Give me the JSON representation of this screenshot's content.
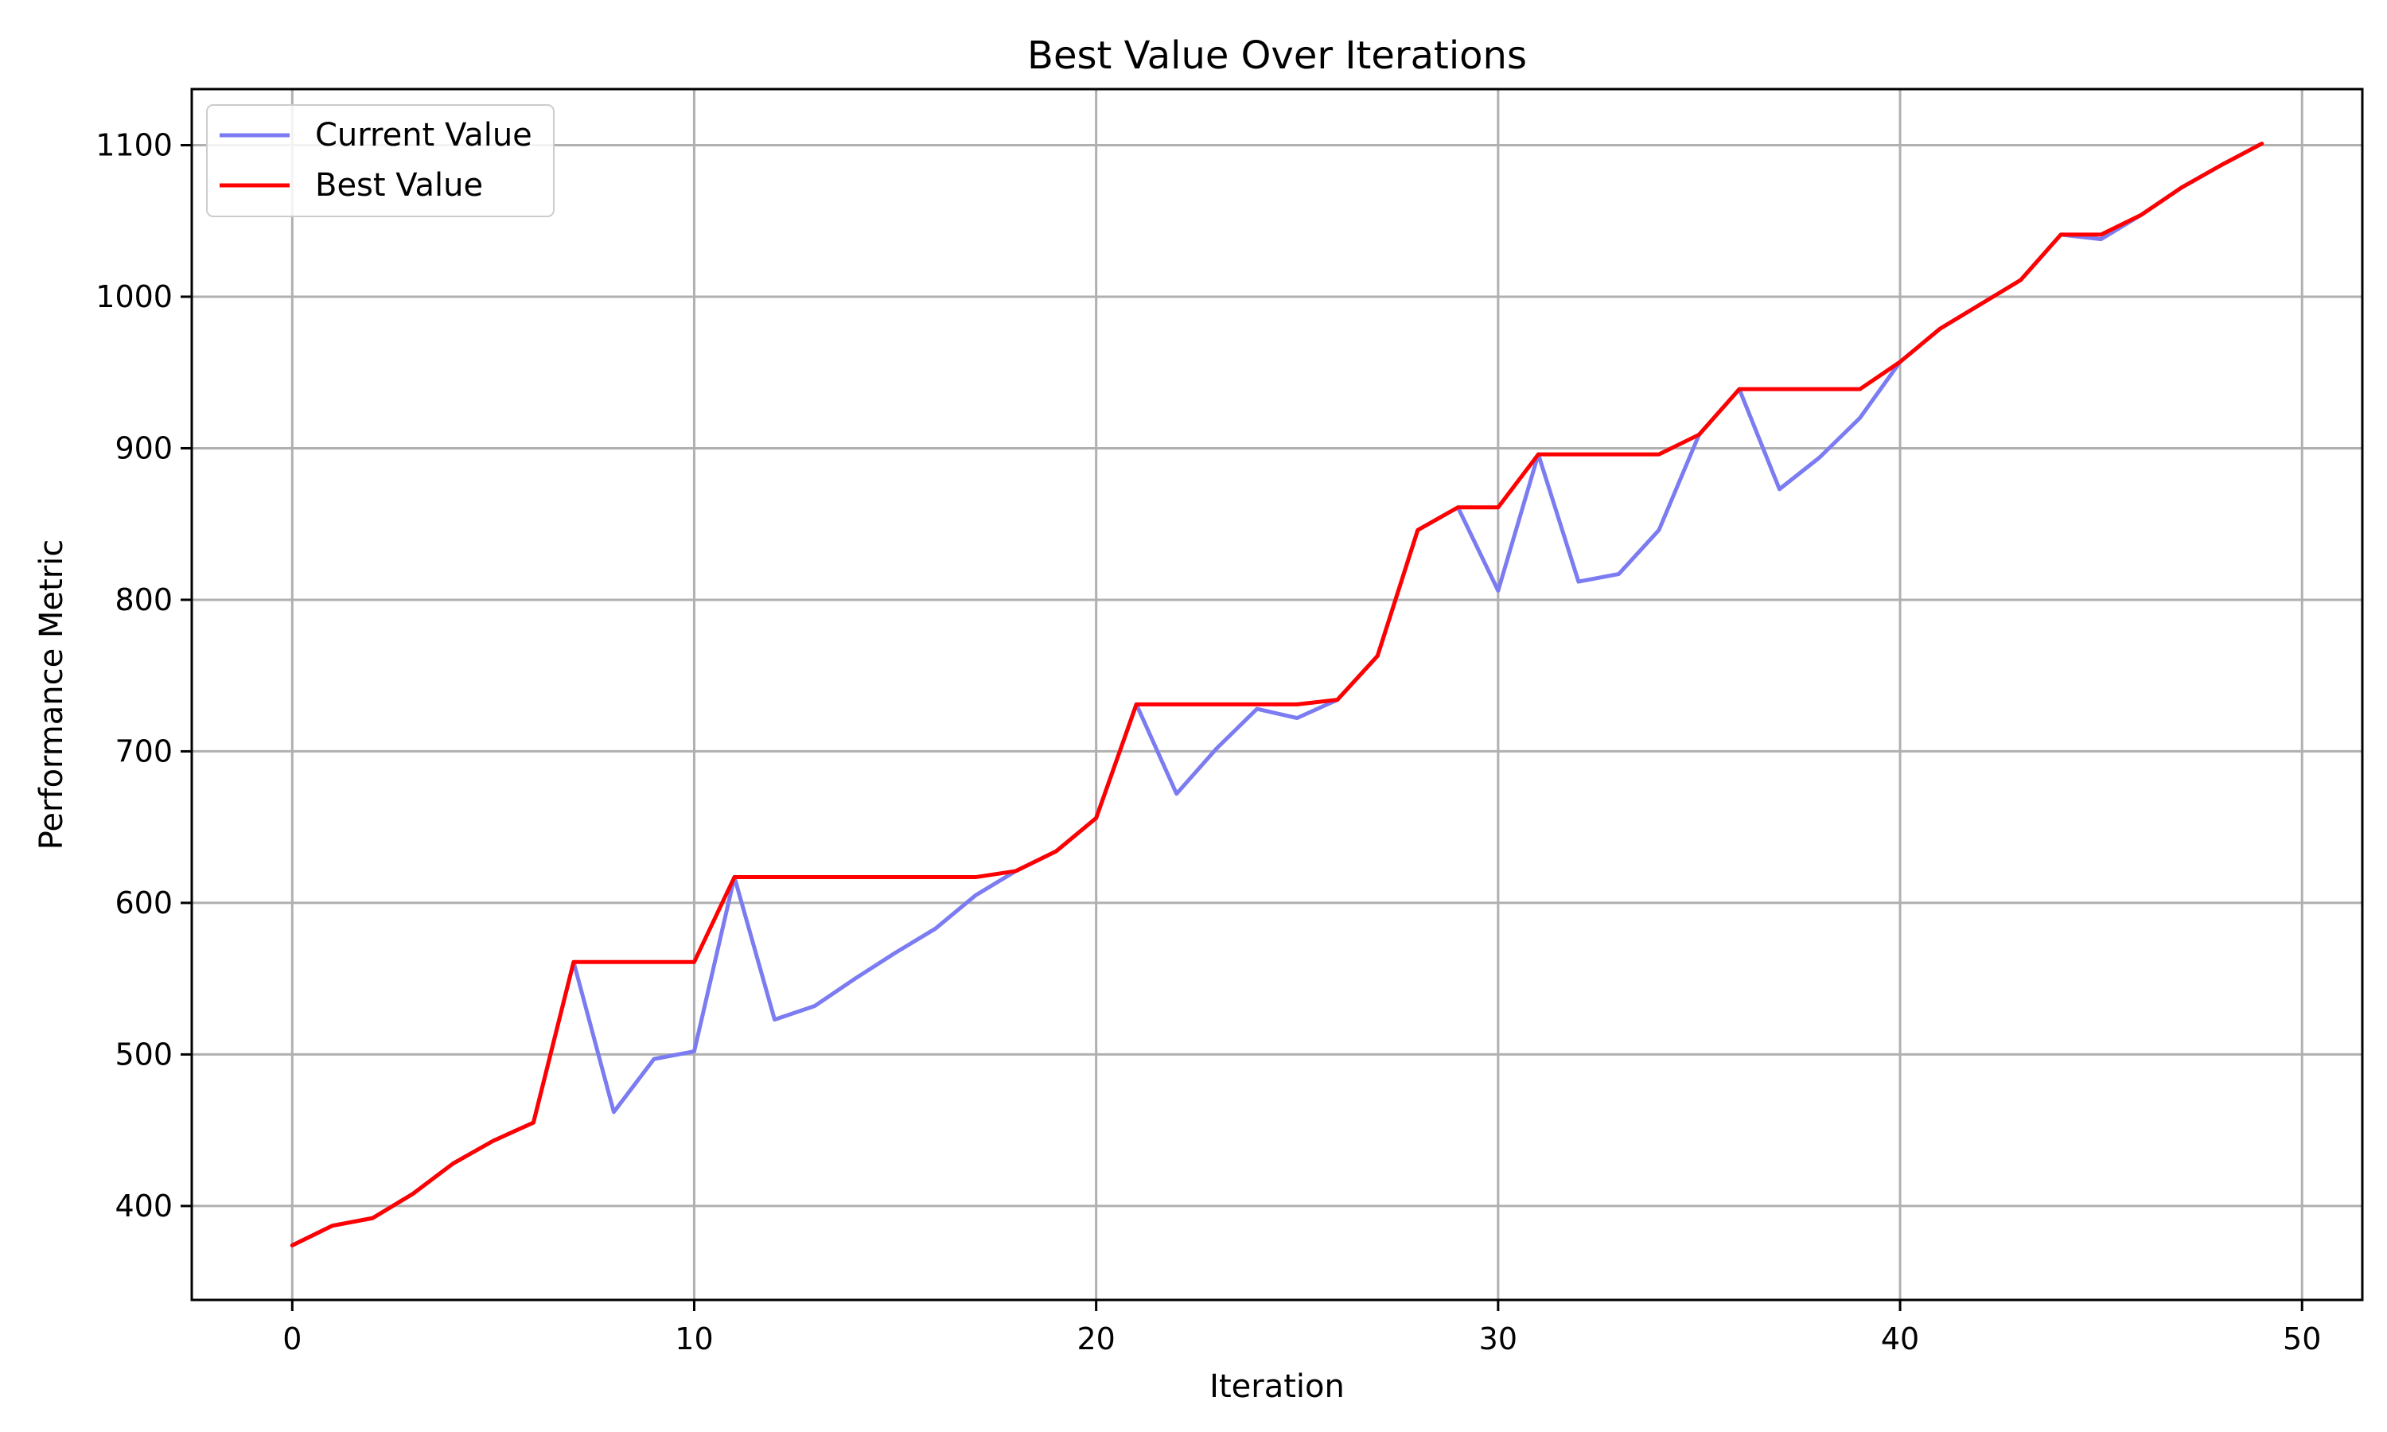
{
  "chart_data": {
    "type": "line",
    "title": "Best Value Over Iterations",
    "xlabel": "Iteration",
    "ylabel": "Performance Metric",
    "xlim": [
      -2.5,
      51.5
    ],
    "ylim": [
      338,
      1137
    ],
    "xticks": [
      0,
      10,
      20,
      30,
      40,
      50
    ],
    "yticks": [
      400,
      500,
      600,
      700,
      800,
      900,
      1000,
      1100
    ],
    "grid": true,
    "legend_position": "upper left",
    "x": [
      0,
      1,
      2,
      3,
      4,
      5,
      6,
      7,
      8,
      9,
      10,
      11,
      12,
      13,
      14,
      15,
      16,
      17,
      18,
      19,
      20,
      21,
      22,
      23,
      24,
      25,
      26,
      27,
      28,
      29,
      30,
      31,
      32,
      33,
      34,
      35,
      36,
      37,
      38,
      39,
      40,
      41,
      42,
      43,
      44,
      45,
      46,
      47,
      48,
      49
    ],
    "series": [
      {
        "name": "Current Value",
        "color": "#7b7bf2",
        "values": [
          374,
          387,
          392,
          408,
          428,
          443,
          455,
          561,
          462,
          497,
          502,
          617,
          523,
          532,
          550,
          567,
          583,
          605,
          621,
          634,
          656,
          731,
          672,
          702,
          728,
          722,
          734,
          763,
          846,
          861,
          806,
          896,
          812,
          817,
          846,
          909,
          939,
          873,
          894,
          920,
          957,
          979,
          995,
          1011,
          1041,
          1038,
          1054,
          1072,
          1087,
          1101
        ]
      },
      {
        "name": "Best Value",
        "color": "#ff0000",
        "values": [
          374,
          387,
          392,
          408,
          428,
          443,
          455,
          561,
          561,
          561,
          561,
          617,
          617,
          617,
          617,
          617,
          617,
          617,
          621,
          634,
          656,
          731,
          731,
          731,
          731,
          731,
          734,
          763,
          846,
          861,
          861,
          896,
          896,
          896,
          896,
          909,
          939,
          939,
          939,
          939,
          957,
          979,
          995,
          1011,
          1041,
          1041,
          1054,
          1072,
          1087,
          1101
        ]
      }
    ]
  }
}
